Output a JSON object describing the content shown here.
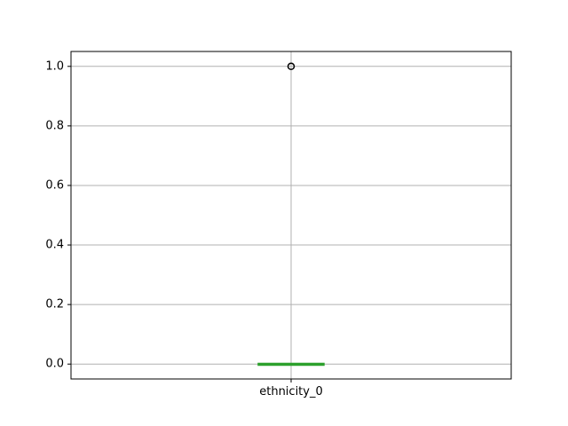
{
  "chart_data": {
    "type": "box",
    "title": "",
    "xlabel": "",
    "ylabel": "",
    "ylim": [
      -0.05,
      1.05
    ],
    "yticks": [
      0.0,
      0.2,
      0.4,
      0.6,
      0.8,
      1.0
    ],
    "ytick_labels": [
      "0.0",
      "0.2",
      "0.4",
      "0.6",
      "0.8",
      "1.0"
    ],
    "grid": true,
    "categories": [
      "ethnicity_0"
    ],
    "boxes": [
      {
        "name": "ethnicity_0",
        "whisker_low": 0.0,
        "q1": 0.0,
        "median": 0.0,
        "q3": 0.0,
        "whisker_high": 0.0,
        "fliers": [
          1.0
        ]
      }
    ],
    "colors": {
      "box": "#2ca02c",
      "median": "#2ca02c",
      "whisker": "#2ca02c",
      "flier_edge": "#000000",
      "grid": "#b0b0b0",
      "axes": "#000000"
    }
  }
}
